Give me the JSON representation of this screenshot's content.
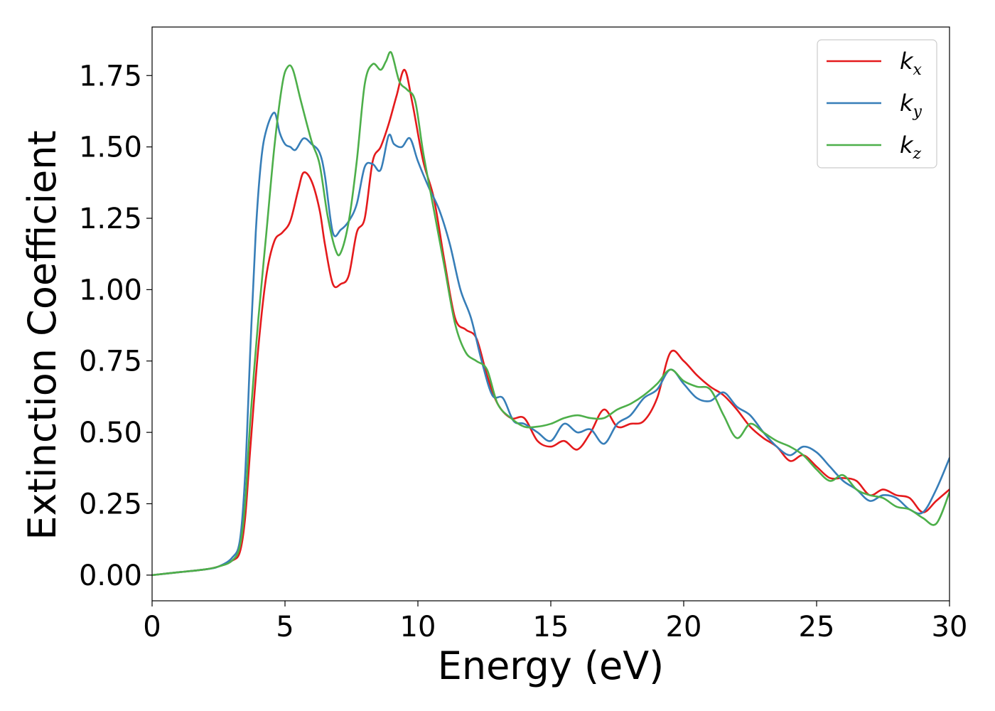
{
  "chart_data": {
    "type": "line",
    "xlabel": "Energy (eV)",
    "ylabel": "Extinction Coefficient",
    "xlim": [
      0,
      30
    ],
    "ylim": [
      -0.09,
      1.92
    ],
    "xticks": [
      0,
      5,
      10,
      15,
      20,
      25,
      30
    ],
    "xtick_labels": [
      "0",
      "5",
      "10",
      "15",
      "20",
      "25",
      "30"
    ],
    "yticks": [
      0.0,
      0.25,
      0.5,
      0.75,
      1.0,
      1.25,
      1.5,
      1.75
    ],
    "ytick_labels": [
      "0.00",
      "0.25",
      "0.50",
      "0.75",
      "1.00",
      "1.25",
      "1.50",
      "1.75"
    ],
    "grid": false,
    "legend_position": "top-right",
    "series": [
      {
        "name": "k",
        "subscript": "x",
        "color": "#e41a1c",
        "x": [
          0,
          1,
          2,
          2.5,
          3,
          3.3,
          3.5,
          3.7,
          4.0,
          4.3,
          4.6,
          4.9,
          5.2,
          5.5,
          5.7,
          6.0,
          6.3,
          6.5,
          6.8,
          7.1,
          7.4,
          7.7,
          8.0,
          8.3,
          8.6,
          8.9,
          9.2,
          9.5,
          9.8,
          10.2,
          10.6,
          11.0,
          11.4,
          11.8,
          12.2,
          12.6,
          13.0,
          13.5,
          14.0,
          14.5,
          15.0,
          15.5,
          16.0,
          16.5,
          17.0,
          17.5,
          18.0,
          18.5,
          19.0,
          19.5,
          20.0,
          20.5,
          21.0,
          21.5,
          22.0,
          22.5,
          23.0,
          23.5,
          24.0,
          24.5,
          25.0,
          25.5,
          26.0,
          26.5,
          27.0,
          27.5,
          28.0,
          28.5,
          29.0,
          29.5,
          30.0
        ],
        "y": [
          0.0,
          0.01,
          0.02,
          0.03,
          0.05,
          0.08,
          0.2,
          0.45,
          0.8,
          1.05,
          1.17,
          1.2,
          1.24,
          1.35,
          1.41,
          1.38,
          1.28,
          1.16,
          1.02,
          1.02,
          1.05,
          1.2,
          1.25,
          1.45,
          1.5,
          1.58,
          1.68,
          1.77,
          1.65,
          1.45,
          1.32,
          1.1,
          0.9,
          0.86,
          0.83,
          0.7,
          0.6,
          0.55,
          0.55,
          0.47,
          0.45,
          0.47,
          0.44,
          0.5,
          0.58,
          0.52,
          0.53,
          0.54,
          0.62,
          0.78,
          0.75,
          0.7,
          0.66,
          0.63,
          0.58,
          0.52,
          0.48,
          0.45,
          0.4,
          0.42,
          0.38,
          0.34,
          0.34,
          0.33,
          0.28,
          0.3,
          0.28,
          0.27,
          0.22,
          0.26,
          0.3
        ]
      },
      {
        "name": "k",
        "subscript": "y",
        "color": "#377eb8",
        "x": [
          0,
          1,
          2,
          2.5,
          3,
          3.3,
          3.5,
          3.7,
          3.9,
          4.1,
          4.3,
          4.6,
          4.8,
          5.0,
          5.2,
          5.4,
          5.7,
          6.0,
          6.3,
          6.5,
          6.8,
          7.1,
          7.4,
          7.7,
          8.0,
          8.3,
          8.6,
          8.9,
          9.1,
          9.4,
          9.7,
          10.0,
          10.4,
          10.8,
          11.2,
          11.6,
          12.0,
          12.4,
          12.8,
          13.2,
          13.6,
          14.0,
          14.5,
          15.0,
          15.5,
          16.0,
          16.5,
          17.0,
          17.5,
          18.0,
          18.5,
          19.0,
          19.5,
          20.0,
          20.5,
          21.0,
          21.5,
          22.0,
          22.5,
          23.0,
          23.5,
          24.0,
          24.5,
          25.0,
          25.5,
          26.0,
          26.5,
          27.0,
          27.5,
          28.0,
          28.5,
          29.0,
          29.5,
          30.0
        ],
        "y": [
          0.0,
          0.01,
          0.02,
          0.03,
          0.06,
          0.12,
          0.35,
          0.8,
          1.2,
          1.45,
          1.56,
          1.62,
          1.55,
          1.51,
          1.5,
          1.49,
          1.53,
          1.51,
          1.48,
          1.4,
          1.2,
          1.21,
          1.24,
          1.3,
          1.43,
          1.44,
          1.42,
          1.54,
          1.51,
          1.5,
          1.53,
          1.45,
          1.36,
          1.28,
          1.16,
          1.0,
          0.9,
          0.75,
          0.63,
          0.62,
          0.54,
          0.53,
          0.5,
          0.47,
          0.53,
          0.5,
          0.51,
          0.46,
          0.53,
          0.56,
          0.62,
          0.65,
          0.72,
          0.67,
          0.62,
          0.61,
          0.64,
          0.59,
          0.56,
          0.5,
          0.45,
          0.42,
          0.45,
          0.43,
          0.38,
          0.33,
          0.3,
          0.26,
          0.28,
          0.27,
          0.23,
          0.22,
          0.3,
          0.41
        ]
      },
      {
        "name": "k",
        "subscript": "z",
        "color": "#4daf4a",
        "x": [
          0,
          1,
          2,
          2.5,
          3,
          3.3,
          3.5,
          3.7,
          4.0,
          4.3,
          4.6,
          4.9,
          5.1,
          5.3,
          5.6,
          6.0,
          6.3,
          6.6,
          6.9,
          7.1,
          7.4,
          7.7,
          8.0,
          8.3,
          8.6,
          8.8,
          9.0,
          9.3,
          9.6,
          9.9,
          10.2,
          10.6,
          11.0,
          11.4,
          11.8,
          12.2,
          12.6,
          13.0,
          13.5,
          14.0,
          14.5,
          15.0,
          15.5,
          16.0,
          16.5,
          17.0,
          17.5,
          18.0,
          18.5,
          19.0,
          19.5,
          20.0,
          20.5,
          21.0,
          21.5,
          22.0,
          22.5,
          23.0,
          23.5,
          24.0,
          24.5,
          25.0,
          25.5,
          26.0,
          26.5,
          27.0,
          27.5,
          28.0,
          28.5,
          29.0,
          29.5,
          30.0
        ],
        "y": [
          0.0,
          0.01,
          0.02,
          0.03,
          0.05,
          0.1,
          0.25,
          0.55,
          0.9,
          1.2,
          1.5,
          1.72,
          1.78,
          1.77,
          1.66,
          1.52,
          1.44,
          1.26,
          1.14,
          1.13,
          1.24,
          1.45,
          1.72,
          1.79,
          1.77,
          1.8,
          1.83,
          1.73,
          1.7,
          1.66,
          1.48,
          1.28,
          1.08,
          0.88,
          0.78,
          0.75,
          0.72,
          0.6,
          0.55,
          0.52,
          0.52,
          0.53,
          0.55,
          0.56,
          0.55,
          0.55,
          0.58,
          0.6,
          0.63,
          0.67,
          0.72,
          0.68,
          0.66,
          0.65,
          0.56,
          0.48,
          0.53,
          0.5,
          0.47,
          0.45,
          0.42,
          0.37,
          0.33,
          0.35,
          0.3,
          0.28,
          0.27,
          0.24,
          0.23,
          0.2,
          0.18,
          0.29
        ]
      }
    ]
  }
}
